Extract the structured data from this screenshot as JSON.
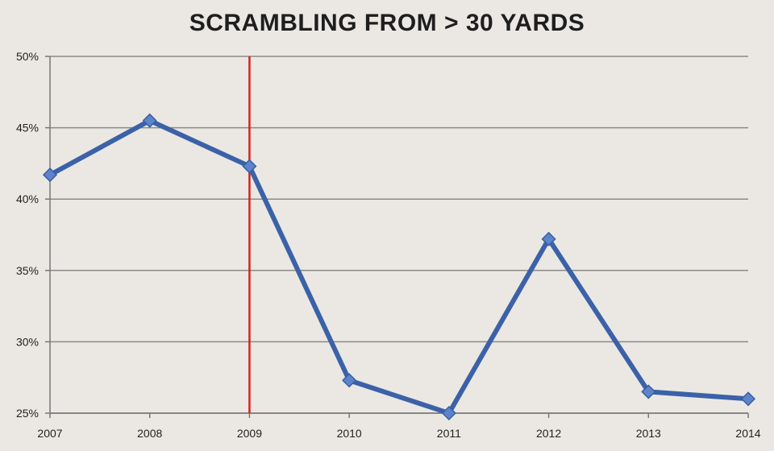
{
  "chart_data": {
    "type": "line",
    "title": "SCRAMBLING FROM > 30 YARDS",
    "x": [
      "2007",
      "2008",
      "2009",
      "2010",
      "2011",
      "2012",
      "2013",
      "2014"
    ],
    "series": [
      {
        "values": [
          41.7,
          45.5,
          42.3,
          27.3,
          25.0,
          37.2,
          26.5,
          26.0
        ]
      }
    ],
    "ylim": [
      25,
      50
    ],
    "yticks": [
      25,
      30,
      35,
      40,
      45,
      50
    ],
    "ytick_format": "%",
    "grid": true,
    "marker_line": {
      "x": "2009",
      "color": "#d62020"
    },
    "series_color": "#3b62a8"
  }
}
